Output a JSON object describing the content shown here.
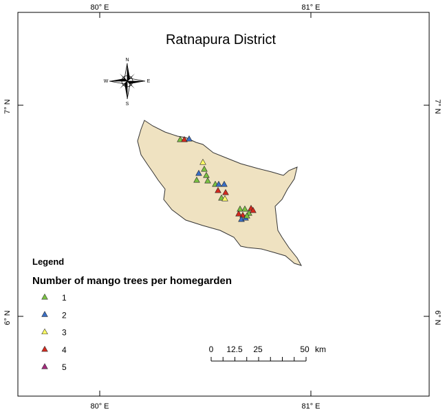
{
  "map": {
    "title": "Ratnapura District",
    "graticule": {
      "longitudes": [
        "80° E",
        "81° E"
      ],
      "latitudes": [
        "7° N",
        "6° N"
      ]
    },
    "compass": [
      "N",
      "S",
      "E",
      "W"
    ],
    "legend": {
      "title": "Legend",
      "subtitle": "Number of mango trees per homegarden",
      "classes": [
        1,
        2,
        3,
        4,
        5
      ],
      "colors": [
        "#7ac142",
        "#3a6fc6",
        "#ffff66",
        "#d42a1e",
        "#a3297c"
      ]
    },
    "scale": {
      "labels": [
        "0",
        "12.5",
        "25",
        "50"
      ],
      "unit": "km"
    },
    "points": [
      1,
      4,
      2,
      3,
      1,
      2,
      1,
      1,
      1,
      1,
      2,
      2,
      4,
      4,
      1,
      3,
      1,
      1,
      4,
      4,
      1,
      4,
      4,
      2,
      2,
      1
    ]
  }
}
